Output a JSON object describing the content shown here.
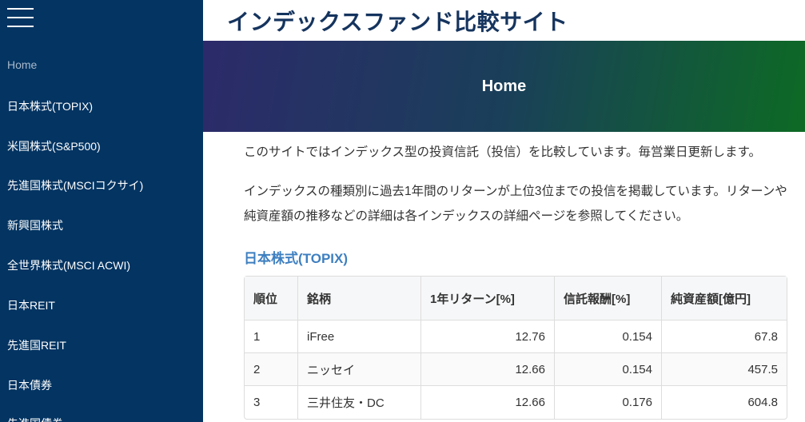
{
  "sidebar": {
    "menu_icon": "hamburger-icon",
    "items": [
      {
        "label": "Home",
        "active": true
      },
      {
        "label": "日本株式(TOPIX)"
      },
      {
        "label": "米国株式(S&P500)"
      },
      {
        "label": "先進国株式(MSCIコクサイ)"
      },
      {
        "label": "新興国株式"
      },
      {
        "label": "全世界株式(MSCI ACWI)"
      },
      {
        "label": "日本REIT"
      },
      {
        "label": "先進国REIT"
      },
      {
        "label": "日本債券"
      },
      {
        "label": "先進国債券"
      }
    ]
  },
  "header": {
    "title": "インデックスファンド比較サイト"
  },
  "banner": {
    "title": "Home"
  },
  "main": {
    "paragraphs": [
      "このサイトではインデックス型の投資信託（投信）を比較しています。毎営業日更新します。",
      "インデックスの種類別に過去1年間のリターンが上位3位までの投信を掲載しています。リターンや純資産額の推移などの詳細は各インデックスの詳細ページを参照してください。"
    ],
    "section_title": "日本株式(TOPIX)",
    "table": {
      "headers": [
        "順位",
        "銘柄",
        "1年リターン[%]",
        "信託報酬[%]",
        "純資産額[億円]"
      ],
      "rows": [
        [
          "1",
          "iFree",
          "12.76",
          "0.154",
          "67.8"
        ],
        [
          "2",
          "ニッセイ",
          "12.66",
          "0.154",
          "457.5"
        ],
        [
          "3",
          "三井住友・DC",
          "12.66",
          "0.176",
          "604.8"
        ]
      ]
    }
  }
}
